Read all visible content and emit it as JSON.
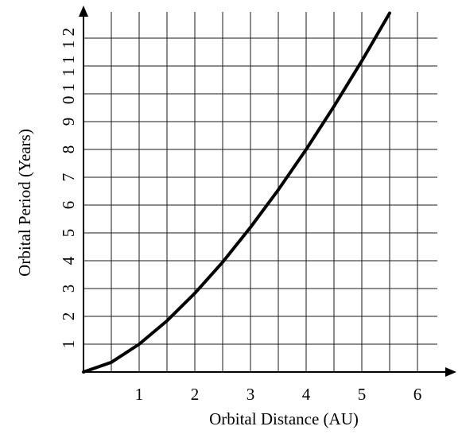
{
  "chart_data": {
    "type": "line",
    "title": "",
    "xlabel": "Orbital Distance (AU)",
    "ylabel": "Orbital Period (Years)",
    "xlim": [
      0,
      6.5
    ],
    "ylim": [
      0,
      13
    ],
    "x_ticks": [
      1,
      2,
      3,
      4,
      5,
      6
    ],
    "x_tick_labels": [
      "1",
      "2",
      "3",
      "4",
      "5",
      "6"
    ],
    "y_ticks": [
      1,
      2,
      3,
      4,
      5,
      6,
      7,
      8,
      9,
      10,
      11,
      12
    ],
    "y_tick_labels": [
      "1",
      "2",
      "3",
      "4",
      "5",
      "6",
      "7",
      "8",
      "9",
      "0 1",
      "1 1",
      "1 2"
    ],
    "grid": true,
    "grid_step_x": 0.5,
    "grid_step_y": 1,
    "legend": "none",
    "series": [
      {
        "x": [
          0,
          0.5,
          1,
          1.5,
          2,
          2.5,
          3,
          3.5,
          4,
          4.5,
          5,
          5.5
        ],
        "y": [
          0,
          0.35,
          1,
          1.84,
          2.83,
          3.95,
          5.2,
          6.55,
          8.0,
          9.55,
          11.18,
          12.9
        ]
      }
    ],
    "colors": {
      "line": "#000000",
      "grid": "#1a1a1a",
      "axis": "#000000"
    }
  }
}
